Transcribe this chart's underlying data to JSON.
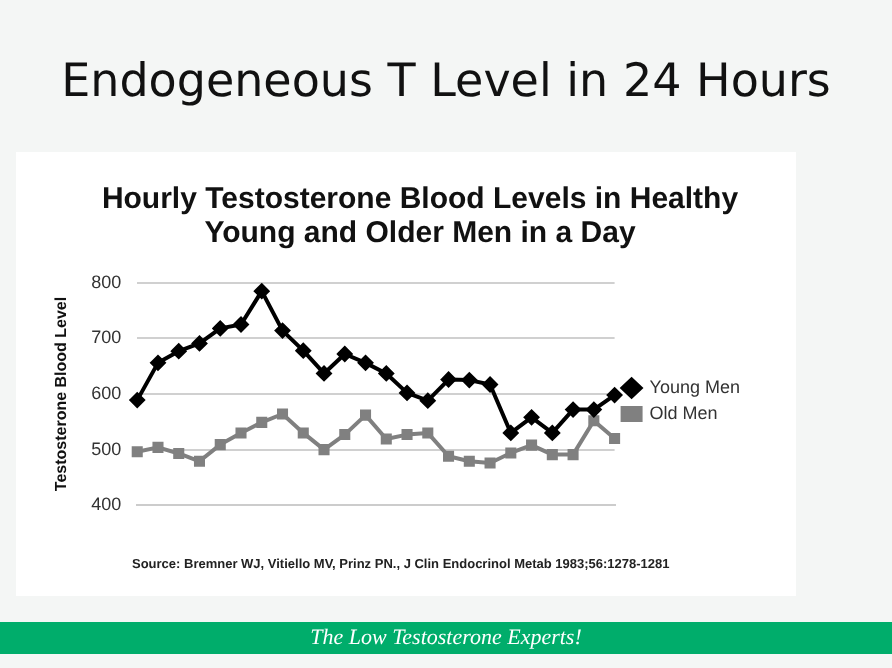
{
  "chart_data": {
    "type": "line",
    "title": "Endogeneous T Level in 24 Hours",
    "subtitle": "Hourly Testosterone Blood Levels in Healthy Young and Older Men in a Day",
    "ylabel": "Testosterone Blood Level",
    "categories": [
      null,
      null,
      null,
      null,
      null,
      null,
      null,
      null,
      null,
      null,
      null,
      null,
      null,
      null,
      null,
      null,
      null,
      null,
      null,
      null,
      null,
      null,
      null,
      null
    ],
    "series": [
      {
        "name": "Young Men",
        "color": "#000000",
        "marker": "diamond",
        "values": [
          589,
          656,
          677,
          691,
          718,
          725,
          785,
          714,
          678,
          637,
          672,
          656,
          637,
          602,
          588,
          626,
          625,
          617,
          530,
          558,
          530,
          572,
          572,
          598
        ]
      },
      {
        "name": "Old Men",
        "color": "#808080",
        "marker": "square",
        "values": [
          496,
          504,
          493,
          479,
          509,
          530,
          549,
          564,
          530,
          500,
          527,
          562,
          519,
          527,
          530,
          488,
          479,
          476,
          494,
          508,
          491,
          491,
          552,
          520
        ]
      }
    ],
    "ylim": [
      400,
      800
    ],
    "yticks": [
      400,
      500,
      600,
      700,
      800
    ],
    "grid": "y",
    "legend": "right",
    "annotations": [
      "Source: Bremner WJ, Vitiello MV, Prinz PN., J Clin Endocrinol Metab 1983;56:1278-1281",
      "The Low Testosterone Experts!"
    ]
  }
}
